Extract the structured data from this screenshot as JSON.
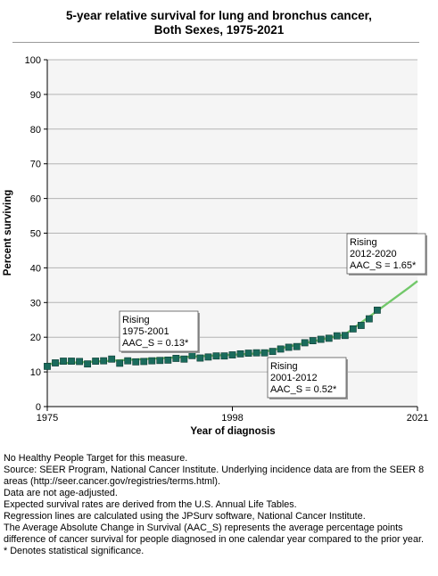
{
  "page": {
    "title_line1": "5-year relative survival for lung and bronchus cancer,",
    "title_line2": "Both Sexes,  1975-2021"
  },
  "notes": [
    "No Healthy People Target for this measure.",
    "Source: SEER Program, National Cancer Institute. Underlying incidence data are from the SEER 8 areas (http://seer.cancer.gov/registries/terms.html).",
    "Data are not age-adjusted.",
    "Expected survival rates are derived from the U.S. Annual Life Tables.",
    "Regression lines are calculated using the JPSurv software, National Cancer Institute.",
    "The Average Absolute Change in Survival (AAC_S) represents the average percentage points difference of cancer survival for people diagnosed in one calendar year compared to the prior year.",
    "* Denotes statistical significance."
  ],
  "colors": {
    "marker": "#1a6b5c",
    "marker_edge": "#0b3a31",
    "line": "#72c86a",
    "grid": "#b4b4b4",
    "plot_bg": "#f5f5f5"
  },
  "chart_data": {
    "type": "scatter",
    "xlabel": "Year of diagnosis",
    "ylabel": "Percent surviving",
    "xlim": [
      1975,
      2021
    ],
    "ylim": [
      0,
      100
    ],
    "x_ticks": [
      1975,
      1998,
      2021
    ],
    "y_ticks": [
      0,
      10,
      20,
      30,
      40,
      50,
      60,
      70,
      80,
      90,
      100
    ],
    "grid": true,
    "series": [
      {
        "kind": "observed",
        "x": [
          1975,
          1976,
          1977,
          1978,
          1979,
          1980,
          1981,
          1982,
          1983,
          1984,
          1985,
          1986,
          1987,
          1988,
          1989,
          1990,
          1991,
          1992,
          1993,
          1994,
          1995,
          1996,
          1997,
          1998,
          1999,
          2000,
          2001,
          2002,
          2003,
          2004,
          2005,
          2006,
          2007,
          2008,
          2009,
          2010,
          2011,
          2012,
          2013,
          2014,
          2015,
          2016
        ],
        "y": [
          11.6,
          12.6,
          13.1,
          13.1,
          13.0,
          12.3,
          13.1,
          13.2,
          13.7,
          12.5,
          13.2,
          12.9,
          13.0,
          13.2,
          13.3,
          13.4,
          13.9,
          13.7,
          14.7,
          14.0,
          14.3,
          14.6,
          14.6,
          14.9,
          15.2,
          15.4,
          15.5,
          15.5,
          15.9,
          16.6,
          17.1,
          17.3,
          18.4,
          19.0,
          19.4,
          19.7,
          20.4,
          20.5,
          22.4,
          23.4,
          25.3,
          27.8
        ]
      },
      {
        "kind": "regression",
        "x": [
          1975,
          2001,
          2012,
          2020,
          2021
        ],
        "y": [
          12.3,
          15.3,
          20.8,
          34.4,
          36.2
        ]
      }
    ],
    "annotations": [
      {
        "line1": "Rising",
        "line2": "1975-2001",
        "line3": "AAC_S =  0.13*"
      },
      {
        "line1": "Rising",
        "line2": "2001-2012",
        "line3": "AAC_S =  0.52*"
      },
      {
        "line1": "Rising",
        "line2": "2012-2020",
        "line3": "AAC_S =  1.65*"
      }
    ]
  }
}
